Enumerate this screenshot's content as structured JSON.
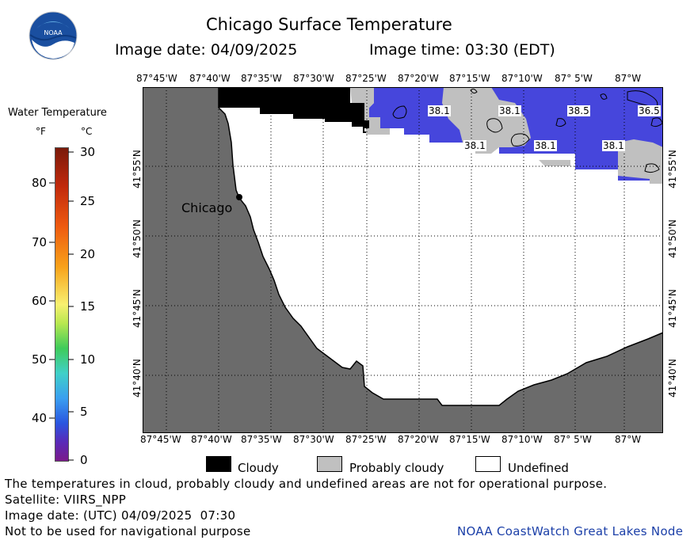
{
  "header": {
    "title": "Chicago Surface Temperature",
    "image_date": "Image date: 04/09/2025",
    "image_time": "Image time: 03:30 (EDT)"
  },
  "legend": {
    "title": "Water Temperature",
    "unit_f": "°F",
    "unit_c": "°C",
    "f_ticks": [
      "80",
      "70",
      "60",
      "50",
      "40"
    ],
    "c_ticks": [
      "30",
      "25",
      "20",
      "15",
      "10",
      "5",
      "0"
    ]
  },
  "map": {
    "lon_labels": [
      "87°45'W",
      "87°40'W",
      "87°35'W",
      "87°30'W",
      "87°25'W",
      "87°20'W",
      "87°15'W",
      "87°10'W",
      "87° 5'W",
      "87°W"
    ],
    "lat_labels": [
      "41°55'N",
      "41°50'N",
      "41°45'N",
      "41°40'N"
    ],
    "city": "Chicago",
    "temperature_labels": [
      "38.1",
      "38.1",
      "38.5",
      "36.5",
      "38.1",
      "38.1",
      "38.1"
    ],
    "colors": {
      "land": "#6b6b6b",
      "cloudy": "#000000",
      "probably_cloudy": "#c0c0c0",
      "undefined": "#ffffff",
      "water_temp": "#4646dc"
    }
  },
  "key": {
    "cloudy": "Cloudy",
    "probably_cloudy": "Probably cloudy",
    "undefined": "Undefined"
  },
  "footer": {
    "line1": "The temperatures in cloud, probably cloudy and undefined areas are not for operational purpose.",
    "line2": "Satellite: VIIRS_NPP",
    "line3": "Image date: (UTC) 04/09/2025  07:30",
    "line4": "Not to be used for navigational purpose",
    "credit": "NOAA CoastWatch Great Lakes Node"
  },
  "logo_text": "NOAA"
}
